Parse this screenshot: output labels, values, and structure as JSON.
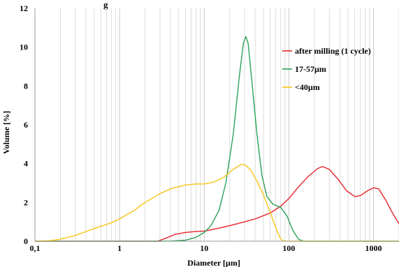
{
  "chart_data": {
    "type": "line",
    "top_text": "g",
    "xlabel": "Diameter [µm]",
    "ylabel": "Volume [%]",
    "x_scale": "log",
    "xlim": [
      0.1,
      2000
    ],
    "ylim": [
      0,
      12
    ],
    "x_ticks": [
      0.1,
      1,
      10,
      100,
      1000
    ],
    "x_tick_labels": [
      "0,1",
      "1",
      "10",
      "100",
      "1000"
    ],
    "y_ticks": [
      0,
      2,
      4,
      6,
      8,
      10,
      12
    ],
    "y_tick_labels": [
      "0",
      "2",
      "4",
      "6",
      "8",
      "10",
      "12"
    ],
    "grid": "vertical",
    "legend_position": "right",
    "series": [
      {
        "name": "after milling (1 cycle)",
        "color": "#e8232a",
        "points": [
          [
            0.1,
            0
          ],
          [
            2.8,
            0
          ],
          [
            3.5,
            0.15
          ],
          [
            4.5,
            0.35
          ],
          [
            6,
            0.45
          ],
          [
            8,
            0.5
          ],
          [
            10,
            0.52
          ],
          [
            14,
            0.65
          ],
          [
            20,
            0.8
          ],
          [
            30,
            1
          ],
          [
            40,
            1.15
          ],
          [
            60,
            1.45
          ],
          [
            80,
            1.8
          ],
          [
            100,
            2.2
          ],
          [
            130,
            2.8
          ],
          [
            170,
            3.35
          ],
          [
            220,
            3.75
          ],
          [
            250,
            3.85
          ],
          [
            300,
            3.7
          ],
          [
            380,
            3.2
          ],
          [
            480,
            2.6
          ],
          [
            600,
            2.3
          ],
          [
            700,
            2.35
          ],
          [
            850,
            2.6
          ],
          [
            1000,
            2.75
          ],
          [
            1150,
            2.7
          ],
          [
            1400,
            2.1
          ],
          [
            1700,
            1.4
          ],
          [
            2000,
            0.9
          ]
        ]
      },
      {
        "name": "17-57µm",
        "color": "#2aa257",
        "points": [
          [
            0.1,
            0
          ],
          [
            3,
            0
          ],
          [
            4,
            0.01
          ],
          [
            6,
            0.05
          ],
          [
            8,
            0.2
          ],
          [
            10,
            0.45
          ],
          [
            12,
            0.8
          ],
          [
            15,
            1.6
          ],
          [
            18,
            3
          ],
          [
            22,
            5.5
          ],
          [
            26,
            8.5
          ],
          [
            29,
            10.2
          ],
          [
            31,
            10.55
          ],
          [
            33,
            10.2
          ],
          [
            37,
            8
          ],
          [
            42,
            5.5
          ],
          [
            48,
            3.4
          ],
          [
            55,
            2.3
          ],
          [
            65,
            1.9
          ],
          [
            80,
            1.75
          ],
          [
            95,
            1.3
          ],
          [
            110,
            0.6
          ],
          [
            130,
            0.1
          ],
          [
            150,
            0
          ],
          [
            2000,
            0
          ]
        ]
      },
      {
        "name": "<40µm",
        "color": "#f5c416",
        "points": [
          [
            0.1,
            0
          ],
          [
            0.15,
            0.03
          ],
          [
            0.2,
            0.1
          ],
          [
            0.3,
            0.3
          ],
          [
            0.5,
            0.65
          ],
          [
            0.8,
            0.95
          ],
          [
            1,
            1.15
          ],
          [
            1.5,
            1.6
          ],
          [
            2,
            2
          ],
          [
            3,
            2.45
          ],
          [
            4,
            2.7
          ],
          [
            6,
            2.9
          ],
          [
            8,
            2.95
          ],
          [
            10,
            2.95
          ],
          [
            13,
            3.05
          ],
          [
            17,
            3.3
          ],
          [
            22,
            3.7
          ],
          [
            27,
            3.95
          ],
          [
            30,
            3.95
          ],
          [
            35,
            3.7
          ],
          [
            42,
            3.1
          ],
          [
            50,
            2.4
          ],
          [
            60,
            1.5
          ],
          [
            70,
            0.7
          ],
          [
            78,
            0.2
          ],
          [
            85,
            0.02
          ],
          [
            95,
            0
          ],
          [
            2000,
            0
          ]
        ]
      }
    ]
  }
}
